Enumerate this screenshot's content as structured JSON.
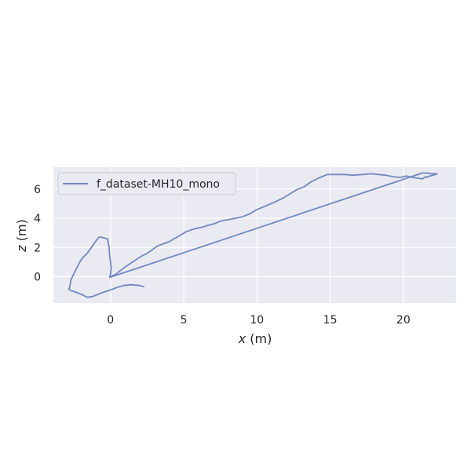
{
  "chart_data": {
    "type": "line",
    "xlabel_var": "x",
    "xlabel_unit": " (m)",
    "ylabel_var": "z",
    "ylabel_unit": " (m)",
    "xlim": [
      -3.9,
      23.6
    ],
    "ylim": [
      -1.8,
      7.5
    ],
    "x_ticks": [
      0,
      5,
      10,
      15,
      20
    ],
    "y_ticks": [
      0,
      2,
      4,
      6
    ],
    "grid": true,
    "legend_position": "top-left",
    "colors": {
      "background": "#eaeaf2",
      "grid": "#ffffff",
      "line": "#7089c0",
      "text": "#262626",
      "legend_bg": "#eaeaf2",
      "legend_border": "#cccccc"
    },
    "series": [
      {
        "name": "f_dataset-MH10_mono",
        "x": [
          -0.05,
          0.4,
          0.9,
          1.5,
          2.1,
          2.5,
          3.2,
          4.0,
          4.7,
          5.2,
          5.8,
          6.3,
          6.6,
          7.0,
          7.5,
          8.0,
          8.5,
          9.0,
          9.5,
          10.0,
          10.5,
          11.2,
          11.8,
          12.3,
          12.7,
          13.2,
          13.7,
          14.2,
          14.8,
          15.3,
          16.0,
          16.6,
          17.2,
          17.8,
          18.3,
          18.8,
          19.3,
          19.8,
          20.2,
          20.6,
          21.0,
          21.3,
          21.5,
          21.6,
          21.7,
          21.8,
          22.0,
          22.2,
          22.3,
          22.3,
          22.1,
          21.9,
          21.6,
          21.3,
          -0.05,
          0.0,
          0.05,
          0.0,
          -0.05,
          -0.1,
          -0.2,
          -0.6,
          -0.8,
          -1.1,
          -1.3,
          -1.6,
          -1.9,
          -2.1,
          -2.3,
          -2.5,
          -2.7,
          -2.75,
          -2.8,
          -2.85,
          -2.7,
          -2.4,
          -2.0,
          -1.6,
          -1.2,
          -0.6,
          -0.3,
          0.0,
          0.4,
          0.9,
          1.4,
          2.0,
          2.3
        ],
        "y": [
          -0.05,
          0.2,
          0.6,
          1.0,
          1.4,
          1.6,
          2.1,
          2.4,
          2.8,
          3.1,
          3.3,
          3.4,
          3.5,
          3.6,
          3.8,
          3.9,
          4.0,
          4.1,
          4.3,
          4.6,
          4.8,
          5.1,
          5.4,
          5.7,
          5.95,
          6.15,
          6.5,
          6.75,
          7.0,
          7.0,
          7.0,
          6.95,
          7.0,
          7.05,
          7.0,
          6.95,
          6.85,
          6.8,
          6.9,
          6.8,
          6.75,
          6.7,
          6.85,
          6.8,
          6.85,
          6.9,
          6.95,
          7.0,
          7.05,
          7.05,
          7.05,
          7.05,
          7.1,
          7.1,
          -0.05,
          0.2,
          0.6,
          1.0,
          1.4,
          2.0,
          2.6,
          2.7,
          2.7,
          2.3,
          2.0,
          1.6,
          1.3,
          1.0,
          0.6,
          0.2,
          -0.2,
          -0.5,
          -0.75,
          -0.85,
          -0.95,
          -1.05,
          -1.2,
          -1.4,
          -1.35,
          -1.1,
          -1.0,
          -0.9,
          -0.75,
          -0.6,
          -0.55,
          -0.6,
          -0.7
        ]
      }
    ]
  }
}
